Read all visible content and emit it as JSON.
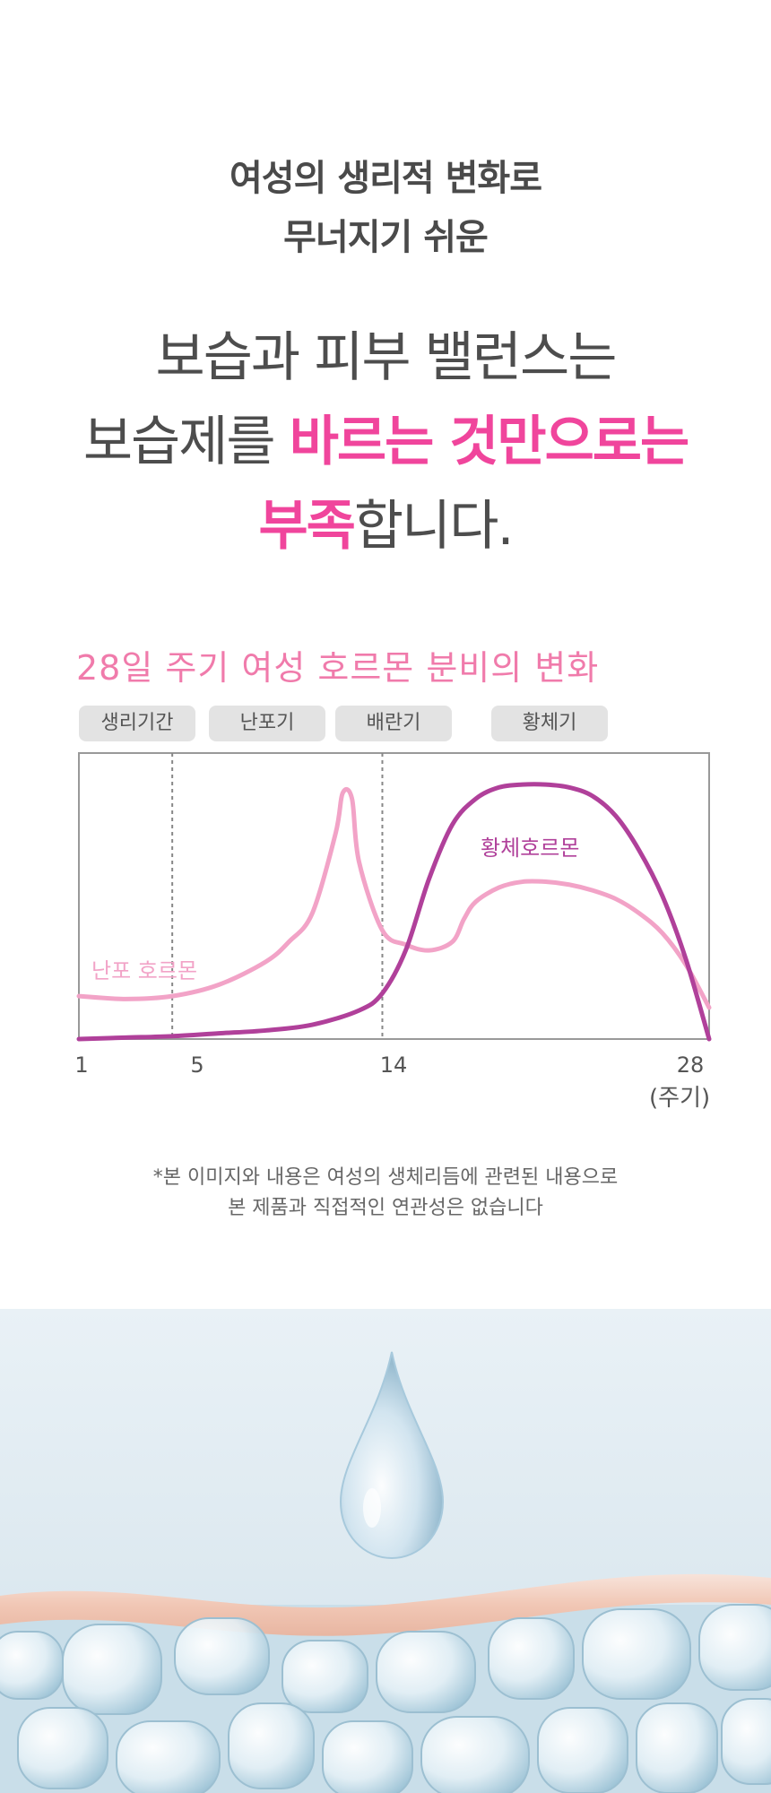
{
  "intro": {
    "line1": "여성의 생리적 변화로",
    "line2": "무너지기 쉬운"
  },
  "headline": {
    "line1": "보습과 피부 밸런스는",
    "line2_plain": "보습제를 ",
    "line2_em": "바르는 것만으로는",
    "line3_em": "부족",
    "line3_plain": "합니다."
  },
  "colors": {
    "accent_pink": "#f0459c",
    "title_pink": "#f07bab",
    "estrogen_line": "#f2a3c7",
    "progesterone_line": "#b0409a",
    "phase_bg": "#e3e3e3"
  },
  "chart": {
    "phases": [
      "생리기간",
      "난포기",
      "배란기",
      "황체기"
    ],
    "unit_label": "(주기)"
  },
  "chart_data": {
    "type": "line",
    "title": "28일 주기 여성 호르몬 분비의 변화",
    "x_ticks": [
      1,
      5,
      14,
      28
    ],
    "xlim": [
      1,
      28
    ],
    "ylim": [
      0,
      100
    ],
    "y_axis_shown": false,
    "grid": false,
    "phase_dividers_x": [
      5,
      14
    ],
    "series": [
      {
        "name": "난포 호르몬",
        "x": [
          1,
          3,
          5,
          7,
          9,
          10,
          11,
          12,
          12.3,
          12.7,
          13,
          14,
          15,
          16,
          17,
          17.5,
          18,
          19,
          20,
          21,
          22,
          23,
          24,
          25,
          26,
          27,
          28
        ],
        "values": [
          15,
          14,
          15,
          19,
          27,
          34,
          44,
          72,
          86,
          84,
          62,
          38,
          33,
          31,
          34,
          42,
          48,
          53,
          55,
          55,
          54,
          52,
          49,
          44,
          37,
          26,
          11
        ]
      },
      {
        "name": "황체호르몬",
        "x": [
          1,
          3,
          5,
          7,
          9,
          11,
          13,
          14,
          15,
          16,
          17,
          18,
          19,
          20,
          21,
          22,
          23,
          24,
          25,
          26,
          27,
          28
        ],
        "values": [
          0,
          0.5,
          1,
          2,
          3,
          5,
          10,
          16,
          31,
          56,
          75,
          84,
          88,
          89,
          89,
          88,
          85,
          78,
          66,
          50,
          28,
          0
        ]
      }
    ]
  },
  "disclaimer": {
    "line1": "*본 이미지와 내용은 여성의 생체리듬에 관련된 내용으로",
    "line2": "본 제품과 직접적인 연관성은 없습니다"
  }
}
